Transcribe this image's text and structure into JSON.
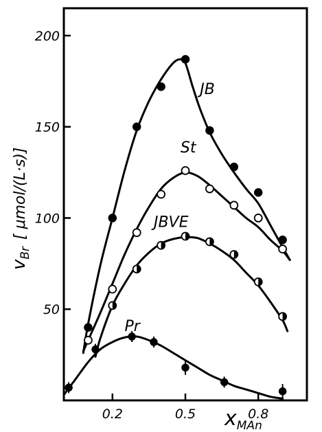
{
  "chart_data": {
    "type": "line",
    "xlabel_main": "x",
    "xlabel_sub": "MAn",
    "ylabel_main": "v",
    "ylabel_sub": "Br",
    "ylabel_unit": "[ μmol/(L·s)]",
    "xlim": [
      0.0,
      1.0
    ],
    "ylim": [
      0,
      215
    ],
    "x_ticks": [
      0.2,
      0.5,
      0.8
    ],
    "x_tick_labels": [
      "0.2",
      "0.5",
      "0.8"
    ],
    "y_ticks": [
      50,
      100,
      150,
      200
    ],
    "y_tick_labels": [
      "50",
      "100",
      "150",
      "200"
    ],
    "grid": false,
    "series": [
      {
        "name": "JB",
        "marker": "filled",
        "points": [
          {
            "x": 0.1,
            "y": 40
          },
          {
            "x": 0.2,
            "y": 100
          },
          {
            "x": 0.3,
            "y": 150
          },
          {
            "x": 0.4,
            "y": 172
          },
          {
            "x": 0.5,
            "y": 187
          },
          {
            "x": 0.6,
            "y": 148
          },
          {
            "x": 0.7,
            "y": 128
          },
          {
            "x": 0.8,
            "y": 114
          },
          {
            "x": 0.9,
            "y": 88
          }
        ],
        "curve": [
          {
            "x": 0.08,
            "y": 26
          },
          {
            "x": 0.1,
            "y": 42
          },
          {
            "x": 0.15,
            "y": 74
          },
          {
            "x": 0.2,
            "y": 100
          },
          {
            "x": 0.25,
            "y": 126
          },
          {
            "x": 0.3,
            "y": 148
          },
          {
            "x": 0.35,
            "y": 164
          },
          {
            "x": 0.4,
            "y": 176
          },
          {
            "x": 0.45,
            "y": 185
          },
          {
            "x": 0.48,
            "y": 187
          },
          {
            "x": 0.5,
            "y": 185
          },
          {
            "x": 0.53,
            "y": 172
          },
          {
            "x": 0.56,
            "y": 160
          },
          {
            "x": 0.6,
            "y": 147
          },
          {
            "x": 0.65,
            "y": 135
          },
          {
            "x": 0.7,
            "y": 125
          },
          {
            "x": 0.75,
            "y": 116
          },
          {
            "x": 0.8,
            "y": 108
          },
          {
            "x": 0.85,
            "y": 96
          },
          {
            "x": 0.9,
            "y": 84
          },
          {
            "x": 0.93,
            "y": 77
          }
        ]
      },
      {
        "name": "St",
        "marker": "open",
        "points": [
          {
            "x": 0.1,
            "y": 33
          },
          {
            "x": 0.2,
            "y": 61
          },
          {
            "x": 0.3,
            "y": 92
          },
          {
            "x": 0.4,
            "y": 113
          },
          {
            "x": 0.5,
            "y": 126
          },
          {
            "x": 0.6,
            "y": 116
          },
          {
            "x": 0.7,
            "y": 107
          },
          {
            "x": 0.8,
            "y": 100
          },
          {
            "x": 0.9,
            "y": 83
          }
        ],
        "curve": [
          {
            "x": 0.08,
            "y": 27
          },
          {
            "x": 0.1,
            "y": 33
          },
          {
            "x": 0.15,
            "y": 48
          },
          {
            "x": 0.2,
            "y": 64
          },
          {
            "x": 0.25,
            "y": 80
          },
          {
            "x": 0.3,
            "y": 94
          },
          {
            "x": 0.35,
            "y": 106
          },
          {
            "x": 0.4,
            "y": 116
          },
          {
            "x": 0.45,
            "y": 122
          },
          {
            "x": 0.5,
            "y": 125
          },
          {
            "x": 0.55,
            "y": 123
          },
          {
            "x": 0.6,
            "y": 118
          },
          {
            "x": 0.65,
            "y": 112
          },
          {
            "x": 0.7,
            "y": 106
          },
          {
            "x": 0.75,
            "y": 100
          },
          {
            "x": 0.8,
            "y": 95
          },
          {
            "x": 0.85,
            "y": 88
          },
          {
            "x": 0.9,
            "y": 82
          },
          {
            "x": 0.93,
            "y": 77
          }
        ]
      },
      {
        "name": "JBVE",
        "marker": "half",
        "points": [
          {
            "x": 0.2,
            "y": 52
          },
          {
            "x": 0.3,
            "y": 72
          },
          {
            "x": 0.4,
            "y": 85
          },
          {
            "x": 0.5,
            "y": 90
          },
          {
            "x": 0.6,
            "y": 87
          },
          {
            "x": 0.7,
            "y": 80
          },
          {
            "x": 0.8,
            "y": 65
          },
          {
            "x": 0.9,
            "y": 46
          }
        ],
        "curve": [
          {
            "x": 0.13,
            "y": 24
          },
          {
            "x": 0.15,
            "y": 34
          },
          {
            "x": 0.2,
            "y": 52
          },
          {
            "x": 0.25,
            "y": 64
          },
          {
            "x": 0.3,
            "y": 74
          },
          {
            "x": 0.35,
            "y": 81
          },
          {
            "x": 0.4,
            "y": 86
          },
          {
            "x": 0.45,
            "y": 88.5
          },
          {
            "x": 0.5,
            "y": 89.5
          },
          {
            "x": 0.55,
            "y": 89
          },
          {
            "x": 0.6,
            "y": 86
          },
          {
            "x": 0.65,
            "y": 82
          },
          {
            "x": 0.7,
            "y": 77
          },
          {
            "x": 0.75,
            "y": 70
          },
          {
            "x": 0.8,
            "y": 63
          },
          {
            "x": 0.85,
            "y": 54
          },
          {
            "x": 0.9,
            "y": 44
          },
          {
            "x": 0.92,
            "y": 38
          }
        ]
      },
      {
        "name": "Pr",
        "marker": "errorbar",
        "points": [
          {
            "x": 0.02,
            "y": 7,
            "err": 3
          },
          {
            "x": 0.13,
            "y": 28,
            "err": 3
          },
          {
            "x": 0.28,
            "y": 35,
            "err": 3
          },
          {
            "x": 0.37,
            "y": 32,
            "err": 3
          },
          {
            "x": 0.5,
            "y": 18,
            "err": 4
          },
          {
            "x": 0.66,
            "y": 10,
            "err": 3
          },
          {
            "x": 0.9,
            "y": 5,
            "err": 4
          }
        ],
        "curve": [
          {
            "x": 0.0,
            "y": 3
          },
          {
            "x": 0.05,
            "y": 12
          },
          {
            "x": 0.1,
            "y": 21
          },
          {
            "x": 0.15,
            "y": 28
          },
          {
            "x": 0.2,
            "y": 32
          },
          {
            "x": 0.25,
            "y": 34.5
          },
          {
            "x": 0.3,
            "y": 35
          },
          {
            "x": 0.35,
            "y": 33
          },
          {
            "x": 0.4,
            "y": 30
          },
          {
            "x": 0.45,
            "y": 26
          },
          {
            "x": 0.5,
            "y": 22
          },
          {
            "x": 0.55,
            "y": 18
          },
          {
            "x": 0.6,
            "y": 14
          },
          {
            "x": 0.65,
            "y": 11
          },
          {
            "x": 0.7,
            "y": 8
          },
          {
            "x": 0.75,
            "y": 6
          },
          {
            "x": 0.8,
            "y": 4
          },
          {
            "x": 0.85,
            "y": 2
          },
          {
            "x": 0.9,
            "y": 1
          }
        ]
      }
    ]
  }
}
